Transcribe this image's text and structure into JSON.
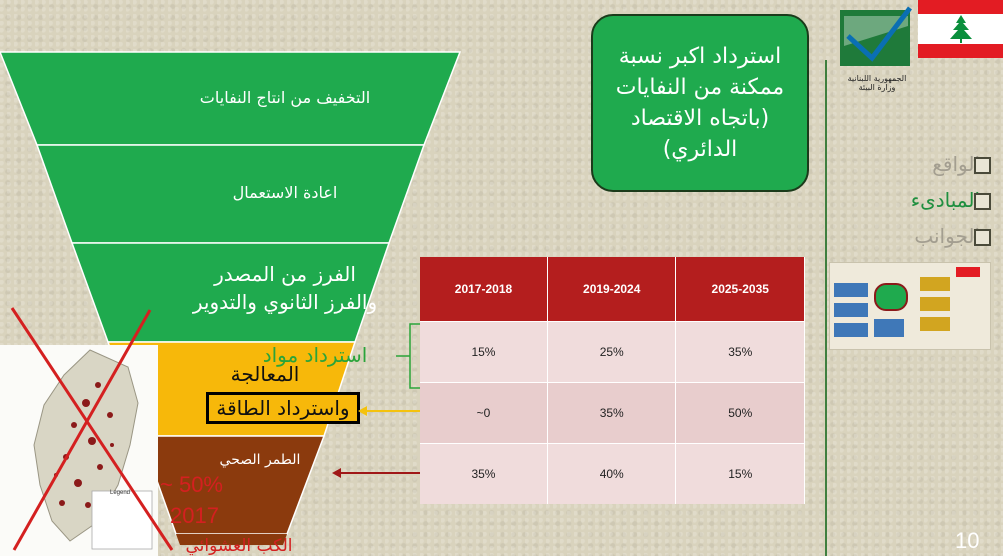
{
  "funnel": {
    "level1": "التخفيف من انتاج النفايات",
    "level2": "اعادة الاستعمال",
    "level3_line1": "الفرز من المصدر",
    "level3_line2": "والفرز الثانوي والتدوير",
    "level4_label": "المعالجة",
    "level4_overlay": "استرداد مواد",
    "level4_box": "واسترداد الطاقة",
    "level5": "الطمر الصحي",
    "level6": "الكب العشوائي"
  },
  "callout": {
    "text": "استرداد اكبر نسبة ممكنة من النفايات (باتجاه الاقتصاد الدائري)"
  },
  "table": {
    "headers": [
      "2017-2018",
      "2019-2024",
      "2025-2035"
    ],
    "rows": [
      [
        "15%",
        "25%",
        "35%"
      ],
      [
        "~0",
        "35%",
        "50%"
      ],
      [
        "35%",
        "40%",
        "15%"
      ]
    ]
  },
  "dump_stat": {
    "percent": "~ 50%",
    "year": "2017"
  },
  "map_legend_title": "Legend",
  "logo": {
    "line1": "الجمهورية اللبنانية",
    "line2": "وزارة البيئة"
  },
  "sidebar": {
    "items": [
      {
        "label": "الواقع",
        "color": "#a39e90"
      },
      {
        "label": "المبادىء",
        "color": "#1f8f3f"
      },
      {
        "label": "الجوانب",
        "color": "#a39e90"
      }
    ]
  },
  "page_number": "10",
  "colors": {
    "green": "#1faa4e",
    "yellow": "#f7b80a",
    "brown": "#8b3a0d",
    "table_header": "#b41e1e",
    "arrow_yellow": "#f4c20d",
    "arrow_red": "#a01818"
  }
}
